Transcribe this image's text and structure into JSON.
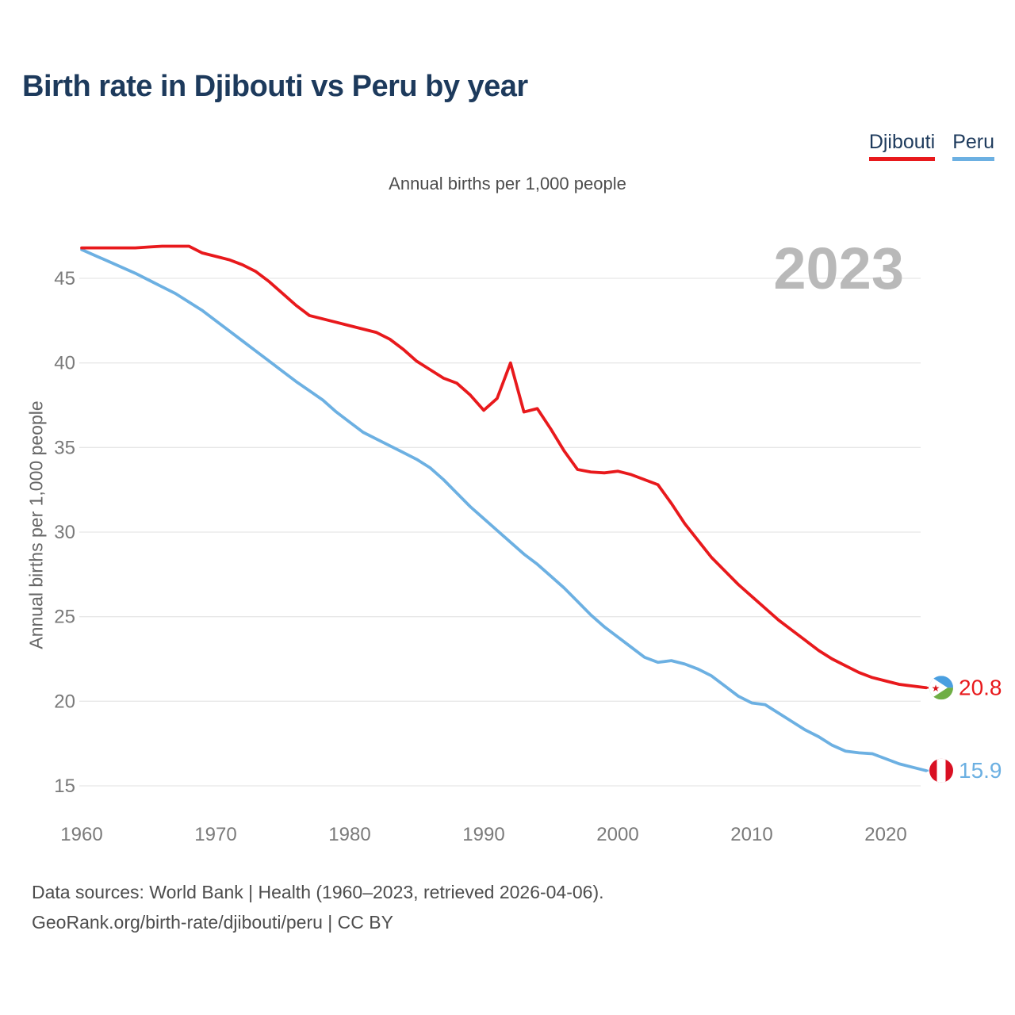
{
  "footer": {
    "line1": "Data sources: World Bank | Health (1960–2023, retrieved 2026-04-06).",
    "line2": "GeoRank.org/birth-rate/djibouti/peru | CC BY"
  },
  "chart_data": {
    "type": "line",
    "title": "Birth rate in Djibouti vs Peru by year",
    "subtitle": "Annual births per 1,000 people",
    "ylabel": "Annual births per 1,000 people",
    "watermark": "2023",
    "x_start": 1960,
    "x_end": 2023,
    "x_ticks": [
      1960,
      1970,
      1980,
      1990,
      2000,
      2010,
      2020
    ],
    "y_ticks": [
      15,
      20,
      25,
      30,
      35,
      40,
      45
    ],
    "ylim": [
      13.5,
      47.5
    ],
    "grid": "horizontal",
    "legend_position": "top-right",
    "series": [
      {
        "name": "Djibouti",
        "color": "#e8191c",
        "end_label": "20.8",
        "flag": "djibouti",
        "values": [
          46.8,
          46.8,
          46.8,
          46.8,
          46.8,
          46.85,
          46.9,
          46.9,
          46.9,
          46.5,
          46.3,
          46.1,
          45.8,
          45.4,
          44.8,
          44.1,
          43.4,
          42.8,
          42.6,
          42.4,
          42.2,
          42.0,
          41.8,
          41.4,
          40.8,
          40.1,
          39.6,
          39.1,
          38.8,
          38.1,
          37.2,
          37.9,
          40.0,
          37.1,
          37.3,
          36.1,
          34.8,
          33.7,
          33.55,
          33.5,
          33.6,
          33.4,
          33.1,
          32.8,
          31.7,
          30.5,
          29.5,
          28.5,
          27.7,
          26.9,
          26.2,
          25.5,
          24.8,
          24.2,
          23.6,
          23.0,
          22.5,
          22.1,
          21.7,
          21.4,
          21.2,
          21.0,
          20.9,
          20.8
        ]
      },
      {
        "name": "Peru",
        "color": "#6cb0e2",
        "end_label": "15.9",
        "flag": "peru",
        "values": [
          46.7,
          46.35,
          46.0,
          45.65,
          45.3,
          44.9,
          44.5,
          44.1,
          43.6,
          43.1,
          42.5,
          41.9,
          41.3,
          40.7,
          40.1,
          39.5,
          38.9,
          38.35,
          37.8,
          37.1,
          36.5,
          35.9,
          35.5,
          35.1,
          34.7,
          34.3,
          33.8,
          33.1,
          32.3,
          31.5,
          30.8,
          30.1,
          29.4,
          28.7,
          28.1,
          27.4,
          26.7,
          25.9,
          25.1,
          24.4,
          23.8,
          23.2,
          22.6,
          22.3,
          22.4,
          22.2,
          21.9,
          21.5,
          20.9,
          20.3,
          19.9,
          19.8,
          19.3,
          18.8,
          18.3,
          17.9,
          17.4,
          17.05,
          16.95,
          16.9,
          16.6,
          16.3,
          16.1,
          15.9
        ]
      }
    ],
    "flag_colors": {
      "djibouti_blue": "#4a9fe0",
      "djibouti_green": "#6fae44",
      "djibouti_star": "#d7141a",
      "peru_red": "#d91023"
    }
  }
}
